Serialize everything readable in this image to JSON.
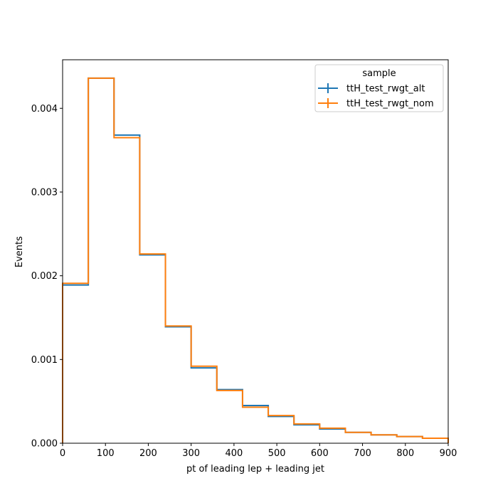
{
  "chart_data": {
    "type": "histogram-step",
    "xlabel": "pt of leading lep + leading jet",
    "ylabel": "Events",
    "xlim": [
      0,
      900
    ],
    "ylim": [
      0,
      0.00458
    ],
    "x_ticks": [
      0,
      100,
      200,
      300,
      400,
      500,
      600,
      700,
      800,
      900
    ],
    "x_tick_labels": [
      "0",
      "100",
      "200",
      "300",
      "400",
      "500",
      "600",
      "700",
      "800",
      "900"
    ],
    "y_ticks": [
      0,
      0.001,
      0.002,
      0.003,
      0.004
    ],
    "y_tick_labels": [
      "0.000",
      "0.001",
      "0.002",
      "0.003",
      "0.004"
    ],
    "bin_edges": [
      0,
      60,
      120,
      180,
      240,
      300,
      360,
      420,
      480,
      540,
      600,
      660,
      720,
      780,
      840,
      900
    ],
    "legend": {
      "title": "sample",
      "placement": "top-right"
    },
    "series": [
      {
        "name": "ttH_test_rwgt_alt",
        "color": "#1f77b4",
        "values": [
          0.00189,
          0.00436,
          0.00368,
          0.00225,
          0.00139,
          0.0009,
          0.00064,
          0.00045,
          0.00032,
          0.00022,
          0.00017,
          0.00013,
          0.0001,
          8e-05,
          6e-05
        ]
      },
      {
        "name": "ttH_test_rwgt_nom",
        "color": "#ff7f0e",
        "values": [
          0.00191,
          0.00436,
          0.00365,
          0.00226,
          0.0014,
          0.00092,
          0.00063,
          0.00043,
          0.00033,
          0.00023,
          0.00018,
          0.00013,
          0.0001,
          8e-05,
          6e-05
        ]
      }
    ]
  }
}
